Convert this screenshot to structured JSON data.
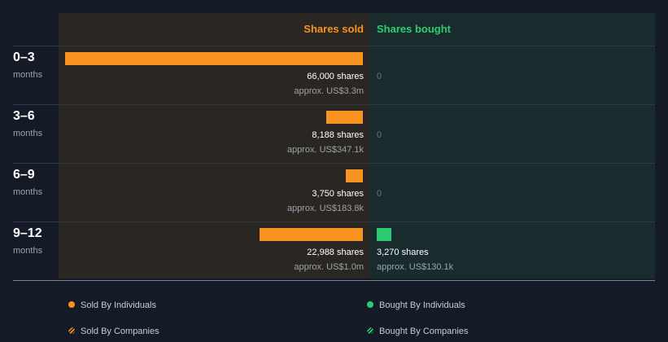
{
  "chart_data": {
    "type": "bar",
    "orientation": "horizontal-diverging",
    "headers": {
      "sold": "Shares sold",
      "bought": "Shares bought"
    },
    "unit_label": "months",
    "max_value": 66000,
    "periods": [
      {
        "label": "0–3",
        "sold": 66000,
        "sold_label": "66,000 shares",
        "sold_approx": "approx. US$3.3m",
        "bought": 0,
        "bought_label": "0",
        "bought_approx": ""
      },
      {
        "label": "3–6",
        "sold": 8188,
        "sold_label": "8,188 shares",
        "sold_approx": "approx. US$347.1k",
        "bought": 0,
        "bought_label": "0",
        "bought_approx": ""
      },
      {
        "label": "6–9",
        "sold": 3750,
        "sold_label": "3,750 shares",
        "sold_approx": "approx. US$183.8k",
        "bought": 0,
        "bought_label": "0",
        "bought_approx": ""
      },
      {
        "label": "9–12",
        "sold": 22988,
        "sold_label": "22,988 shares",
        "sold_approx": "approx. US$1.0m",
        "bought": 3270,
        "bought_label": "3,270 shares",
        "bought_approx": "approx. US$130.1k"
      }
    ],
    "legend": [
      {
        "label": "Sold By Individuals",
        "color": "#f7931e",
        "style": "solid"
      },
      {
        "label": "Bought By Individuals",
        "color": "#2ecc71",
        "style": "solid"
      },
      {
        "label": "Sold By Companies",
        "color": "#f7931e",
        "style": "hatched"
      },
      {
        "label": "Bought By Companies",
        "color": "#2ecc71",
        "style": "hatched"
      }
    ],
    "colors": {
      "sold": "#f7931e",
      "bought": "#2ecc71"
    }
  }
}
